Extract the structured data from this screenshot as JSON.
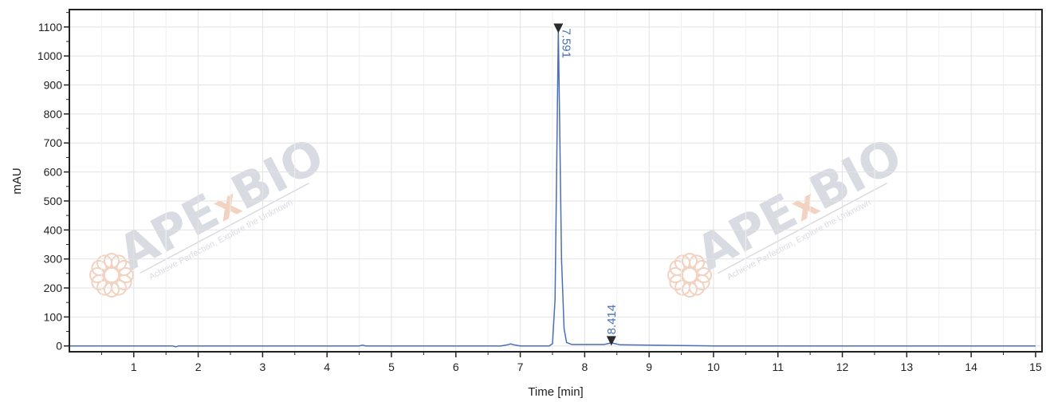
{
  "chart_data": {
    "type": "line",
    "xlabel": "Time [min]",
    "ylabel": "mAU",
    "xlim": [
      0,
      15.1
    ],
    "ylim": [
      -20,
      1160
    ],
    "xticks": [
      1,
      2,
      3,
      4,
      5,
      6,
      7,
      8,
      9,
      10,
      11,
      12,
      13,
      14,
      15
    ],
    "yticks": [
      0,
      100,
      200,
      300,
      400,
      500,
      600,
      700,
      800,
      900,
      1000,
      1100
    ],
    "grid": true,
    "line_color": "#4a6fb5",
    "series": [
      {
        "x": [
          0.0,
          1.6,
          1.65,
          1.7,
          4.5,
          4.55,
          4.6,
          6.7,
          6.8,
          6.85,
          6.9,
          7.0,
          7.45,
          7.5,
          7.54,
          7.57,
          7.591,
          7.61,
          7.64,
          7.68,
          7.72,
          7.8,
          8.3,
          8.38,
          8.414,
          8.45,
          8.55,
          10.0,
          15.0
        ],
        "y": [
          0,
          0,
          -3,
          0,
          0,
          3,
          0,
          0,
          4,
          7,
          4,
          0,
          0,
          8,
          160,
          700,
          1090,
          800,
          300,
          60,
          12,
          5,
          5,
          9,
          12,
          9,
          4,
          0,
          0
        ]
      }
    ],
    "peaks": [
      {
        "x": 7.591,
        "y": 1090,
        "label": "7.591"
      },
      {
        "x": 8.414,
        "y": 12,
        "label": "8.414"
      }
    ]
  },
  "watermark": {
    "brand_left": "APE",
    "brand_x": "x",
    "brand_right": "BIO",
    "tagline": "Achieve Perfection, Explore the Unknown",
    "brand_color": "#d9dbe3",
    "accent_color": "#f2d2c0"
  }
}
